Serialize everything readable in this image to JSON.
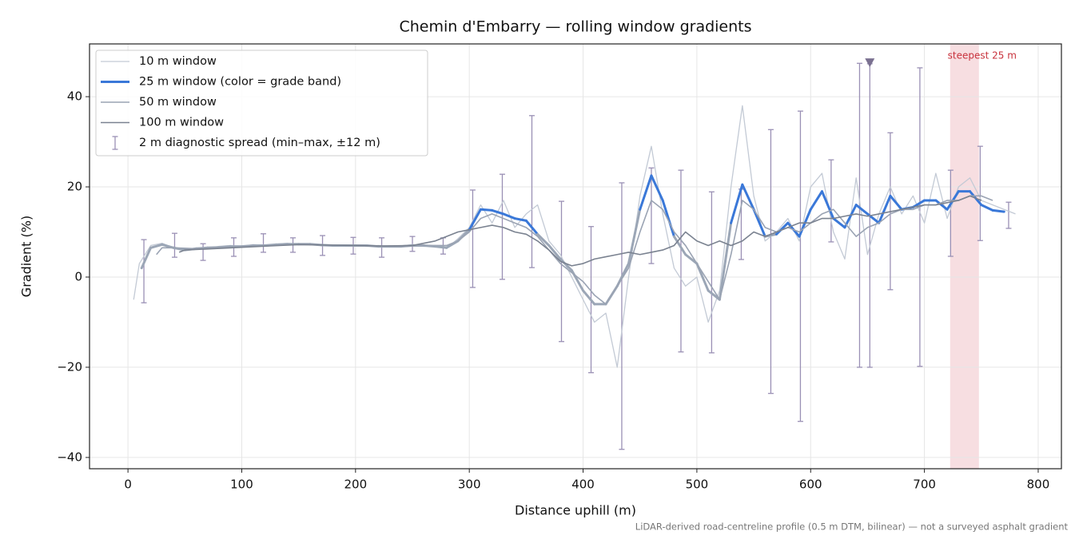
{
  "chart_data": {
    "type": "line",
    "title": "Chemin d'Embarry — rolling window gradients",
    "x_label": "Distance uphill (m)",
    "y_label": "Gradient (%)",
    "footnote": "LiDAR-derived road-centreline profile (0.5 m DTM, bilinear) — not a surveyed asphalt gradient",
    "xlim": [
      -33.8,
      820.4
    ],
    "ylim": [
      -42.5,
      51.7
    ],
    "xticks": [
      0,
      100,
      200,
      300,
      400,
      500,
      600,
      700,
      800
    ],
    "yticks": [
      {
        "value": -40,
        "label": "−40"
      },
      {
        "value": -20,
        "label": "−20"
      },
      0,
      20,
      40
    ],
    "grid": true,
    "legend": "upper left",
    "series": [
      {
        "name": "10 m window",
        "color": "#c3cad5",
        "width": 1.3,
        "x": [
          5,
          10,
          20,
          30,
          40,
          50,
          60,
          70,
          80,
          90,
          100,
          110,
          120,
          130,
          140,
          150,
          160,
          170,
          180,
          190,
          200,
          210,
          220,
          230,
          240,
          250,
          260,
          270,
          280,
          290,
          300,
          310,
          320,
          330,
          340,
          350,
          360,
          370,
          380,
          390,
          400,
          410,
          420,
          430,
          440,
          450,
          460,
          470,
          480,
          490,
          500,
          510,
          520,
          530,
          540,
          550,
          560,
          570,
          580,
          590,
          600,
          610,
          620,
          630,
          640,
          650,
          660,
          670,
          680,
          690,
          700,
          710,
          720,
          730,
          740,
          750,
          760,
          770,
          780
        ],
        "values": [
          -5,
          3,
          7,
          7.5,
          6.5,
          6,
          6.5,
          6.4,
          6.8,
          7,
          6.7,
          7.2,
          7,
          7.3,
          7.5,
          7.2,
          7.4,
          7,
          7.1,
          6.9,
          7.1,
          6.8,
          7,
          6.7,
          6.9,
          7.2,
          6.8,
          7,
          6.4,
          8.5,
          11,
          16,
          12,
          17,
          11,
          14,
          16,
          8,
          5,
          0,
          -5,
          -10,
          -8,
          -20,
          0,
          18,
          29,
          14,
          2,
          -2,
          0,
          -10,
          -3,
          20,
          38,
          18,
          8,
          10,
          13,
          8,
          20,
          23,
          10,
          4,
          22,
          5,
          14,
          20,
          14,
          18,
          12,
          23,
          13,
          20,
          22,
          17,
          16,
          15,
          14
        ]
      },
      {
        "name": "25 m window (color = grade band)",
        "color": "#3a78d8",
        "width": 3,
        "band_breaks": [
          10,
          20
        ],
        "band_colors": [
          "#9ba6b6",
          "#3a78d8",
          "#e08a00"
        ],
        "x": [
          12,
          20,
          30,
          40,
          50,
          60,
          70,
          80,
          90,
          100,
          110,
          120,
          130,
          140,
          150,
          160,
          170,
          180,
          190,
          200,
          210,
          220,
          230,
          240,
          250,
          260,
          270,
          280,
          290,
          300,
          310,
          320,
          330,
          340,
          350,
          360,
          370,
          380,
          390,
          400,
          410,
          420,
          430,
          440,
          450,
          460,
          470,
          480,
          490,
          500,
          510,
          520,
          530,
          540,
          550,
          560,
          570,
          580,
          590,
          600,
          610,
          620,
          630,
          640,
          650,
          660,
          670,
          680,
          690,
          700,
          710,
          720,
          730,
          740,
          750,
          760,
          770
        ],
        "values": [
          2,
          6.5,
          7.2,
          6.5,
          6,
          6.3,
          6.5,
          6.6,
          6.8,
          6.8,
          7,
          7,
          7.2,
          7.3,
          7.3,
          7.3,
          7.1,
          7,
          7,
          7,
          7,
          6.8,
          6.8,
          6.8,
          7,
          7,
          6.8,
          6.5,
          8,
          10.5,
          15,
          14.8,
          14,
          13,
          12.5,
          9.5,
          7,
          4,
          1.5,
          -3,
          -6,
          -6,
          -2,
          3,
          15,
          22.5,
          17,
          9,
          5,
          3,
          -3,
          -5,
          12,
          20.5,
          15,
          9,
          9.5,
          12,
          9,
          15,
          19,
          13,
          11,
          16,
          14,
          12,
          18,
          15,
          15.5,
          17,
          17,
          15,
          19,
          19,
          16,
          14.8,
          14.5
        ]
      },
      {
        "name": "50 m window",
        "color": "#9aa3b3",
        "width": 1.6,
        "x": [
          25,
          30,
          40,
          60,
          80,
          100,
          120,
          140,
          160,
          180,
          200,
          220,
          240,
          260,
          280,
          290,
          300,
          310,
          320,
          330,
          340,
          350,
          360,
          370,
          380,
          390,
          400,
          410,
          420,
          430,
          440,
          450,
          460,
          470,
          480,
          490,
          500,
          510,
          520,
          530,
          540,
          550,
          560,
          570,
          580,
          590,
          600,
          610,
          620,
          630,
          640,
          650,
          660,
          670,
          680,
          690,
          700,
          710,
          720,
          730,
          740,
          750,
          760
        ],
        "values": [
          5,
          6.5,
          6.5,
          6.3,
          6.6,
          6.8,
          7,
          7.2,
          7.3,
          7,
          7,
          6.8,
          6.8,
          7,
          7,
          8,
          10,
          13,
          14,
          13,
          12,
          11,
          9,
          6,
          3,
          1,
          -1,
          -4,
          -6,
          -2,
          2,
          10,
          17,
          15,
          10,
          7,
          3,
          -1,
          -5,
          5,
          17,
          15,
          11,
          10,
          11,
          10,
          12,
          14,
          15,
          12,
          9,
          11,
          12,
          14,
          15,
          15,
          16,
          16,
          17,
          17,
          18,
          18,
          17
        ]
      },
      {
        "name": "100 m window",
        "color": "#7a8290",
        "width": 1.6,
        "x": [
          45,
          50,
          75,
          100,
          125,
          150,
          175,
          200,
          225,
          250,
          270,
          280,
          290,
          300,
          310,
          320,
          330,
          340,
          350,
          360,
          370,
          380,
          390,
          400,
          410,
          420,
          430,
          440,
          450,
          460,
          470,
          480,
          490,
          500,
          510,
          520,
          530,
          540,
          550,
          560,
          570,
          580,
          590,
          600,
          610,
          620,
          630,
          640,
          650,
          660,
          670,
          680,
          690,
          700,
          710,
          720,
          730,
          740,
          750
        ],
        "values": [
          5.5,
          6,
          6.3,
          6.6,
          6.9,
          7.2,
          7.1,
          7,
          6.9,
          7,
          8,
          9,
          10,
          10.5,
          11,
          11.5,
          11,
          10,
          9.5,
          8,
          6,
          3.5,
          2.5,
          3,
          4,
          4.5,
          5,
          5.5,
          5,
          5.5,
          6,
          7,
          10,
          8,
          7,
          8,
          7,
          8,
          10,
          9,
          10,
          11,
          12,
          12,
          13,
          13,
          13.5,
          14,
          13.5,
          14,
          14.5,
          15,
          15.5,
          16,
          16,
          16.5,
          17,
          18,
          17
        ]
      }
    ],
    "errorbars": {
      "name": "2 m diagnostic spread (min–max, ±12 m)",
      "color": "#9a90b5",
      "x": [
        14,
        41,
        66,
        93,
        119,
        145,
        171,
        198,
        223,
        250,
        277,
        303,
        329,
        355,
        381,
        407,
        434,
        460,
        486,
        513,
        539,
        565,
        591,
        618,
        643,
        652,
        670,
        696,
        723,
        749,
        774
      ],
      "low": [
        -5.7,
        4.4,
        3.7,
        4.6,
        5.5,
        5.5,
        4.8,
        5.1,
        4.4,
        5.7,
        5.1,
        -2.3,
        -0.5,
        2.1,
        -14.3,
        -21.2,
        -38.2,
        3,
        -16.6,
        -16.8,
        3.9,
        -25.8,
        -32,
        7.8,
        -20,
        -20,
        -2.8,
        -19.8,
        4.6,
        8.1,
        10.8
      ],
      "high": [
        8.3,
        9.7,
        7.4,
        8.7,
        9.6,
        8.7,
        9.2,
        8.8,
        8.7,
        9,
        8.7,
        19.3,
        22.8,
        35.8,
        16.8,
        11.2,
        20.9,
        24.2,
        23.7,
        18.9,
        19.5,
        32.7,
        36.8,
        26,
        47.4,
        47.3,
        32,
        46.4,
        23.7,
        29,
        16.6
      ]
    },
    "highlight": {
      "label": "steepest 25 m",
      "span": [
        722.6,
        747.9
      ],
      "color": "#e8a0a8",
      "label_color": "#c8323c"
    },
    "marker": {
      "x": 652,
      "y": 47.6,
      "color": "#7a7090"
    }
  }
}
